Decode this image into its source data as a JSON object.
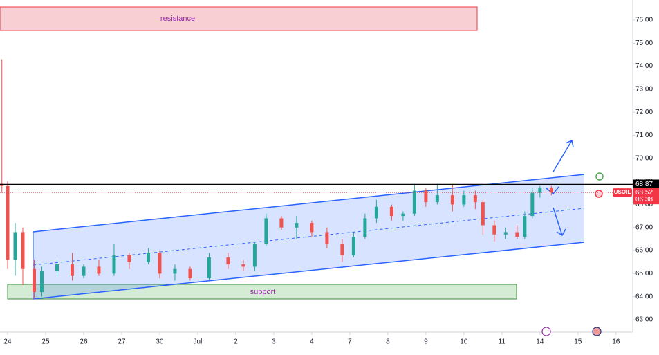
{
  "chart_data": {
    "type": "candlestick",
    "symbol": "USOIL",
    "last_price": 68.52,
    "countdown": "06:38",
    "level": 68.87,
    "annotations": {
      "resistance": "resistance",
      "support": "support"
    },
    "colors": {
      "up": "#26a69a",
      "down": "#ef5350",
      "level": "#000000",
      "last": "#f23645"
    },
    "xlim": [
      -0.2,
      16.44
    ],
    "ylim": [
      62.46,
      76.87
    ],
    "xticks": [
      {
        "value": 0,
        "label": "24"
      },
      {
        "value": 1,
        "label": "25"
      },
      {
        "value": 2,
        "label": "26"
      },
      {
        "value": 3,
        "label": "27"
      },
      {
        "value": 4,
        "label": "30"
      },
      {
        "value": 5,
        "label": "Jul"
      },
      {
        "value": 6,
        "label": "2"
      },
      {
        "value": 7,
        "label": "3"
      },
      {
        "value": 8,
        "label": "4"
      },
      {
        "value": 9,
        "label": "7"
      },
      {
        "value": 10,
        "label": "8"
      },
      {
        "value": 11,
        "label": "9"
      },
      {
        "value": 12,
        "label": "10"
      },
      {
        "value": 13,
        "label": "11"
      },
      {
        "value": 14,
        "label": "14"
      },
      {
        "value": 15,
        "label": "15"
      },
      {
        "value": 16,
        "label": "16"
      }
    ],
    "yticks": [
      {
        "value": 63,
        "label": "63.00"
      },
      {
        "value": 64,
        "label": "64.00"
      },
      {
        "value": 65,
        "label": "65.00"
      },
      {
        "value": 66,
        "label": "66.00"
      },
      {
        "value": 67,
        "label": "67.00"
      },
      {
        "value": 68,
        "label": "68.00"
      },
      {
        "value": 69,
        "label": "69.00"
      },
      {
        "value": 70,
        "label": "70.00"
      },
      {
        "value": 71,
        "label": "71.00"
      },
      {
        "value": 72,
        "label": "72.00"
      },
      {
        "value": 73,
        "label": "73.00"
      },
      {
        "value": 74,
        "label": "74.00"
      },
      {
        "value": 75,
        "label": "75.00"
      },
      {
        "value": 76,
        "label": "76.00"
      }
    ],
    "candles": {
      "x": [
        -0.15,
        0.0,
        0.2,
        0.4,
        0.7,
        0.9,
        1.3,
        1.7,
        2.0,
        2.4,
        2.8,
        3.2,
        3.7,
        4.0,
        4.4,
        4.8,
        5.3,
        5.8,
        6.2,
        6.5,
        6.8,
        7.2,
        7.6,
        8.0,
        8.4,
        8.8,
        9.1,
        9.4,
        9.7,
        10.1,
        10.4,
        10.7,
        11.0,
        11.3,
        11.7,
        12.0,
        12.3,
        12.5,
        12.8,
        13.1,
        13.4,
        13.6,
        13.8,
        14.0,
        14.3
      ],
      "open": [
        68.9,
        68.8,
        65.6,
        66.8,
        65.2,
        64.2,
        65.1,
        65.4,
        64.9,
        65.3,
        65.0,
        65.8,
        65.5,
        65.9,
        65.0,
        65.2,
        64.8,
        65.7,
        65.4,
        65.3,
        66.3,
        67.4,
        67.0,
        67.2,
        66.8,
        66.3,
        65.8,
        66.6,
        67.4,
        67.9,
        67.5,
        67.6,
        68.6,
        68.1,
        68.4,
        68.0,
        68.4,
        68.1,
        67.1,
        66.7,
        66.8,
        66.6,
        67.5,
        68.5,
        68.7
      ],
      "high": [
        74.3,
        69.0,
        67.2,
        67.0,
        65.6,
        65.3,
        65.6,
        65.9,
        65.4,
        65.6,
        66.3,
        65.9,
        66.1,
        66.0,
        65.4,
        65.3,
        65.9,
        65.9,
        65.6,
        66.4,
        67.6,
        67.5,
        67.5,
        67.3,
        67.0,
        66.5,
        66.8,
        67.6,
        68.2,
        68.0,
        67.7,
        68.9,
        68.7,
        68.9,
        68.9,
        68.6,
        68.6,
        68.2,
        67.3,
        67.0,
        67.1,
        67.7,
        68.7,
        68.8,
        68.8
      ],
      "low": [
        68.5,
        65.2,
        64.9,
        64.5,
        63.9,
        64.0,
        64.9,
        64.7,
        64.8,
        64.9,
        64.9,
        65.2,
        65.4,
        64.8,
        64.7,
        64.7,
        64.7,
        65.2,
        65.1,
        65.1,
        66.2,
        66.9,
        66.5,
        66.6,
        66.1,
        65.5,
        65.7,
        66.5,
        67.2,
        67.3,
        67.3,
        67.5,
        67.9,
        68.0,
        67.7,
        67.9,
        67.8,
        66.7,
        66.4,
        66.5,
        66.5,
        66.5,
        67.4,
        68.3,
        68.4
      ],
      "close": [
        68.8,
        65.6,
        66.8,
        65.2,
        64.2,
        65.1,
        65.4,
        64.9,
        65.3,
        65.0,
        65.8,
        65.5,
        65.9,
        65.0,
        65.2,
        64.8,
        65.7,
        65.4,
        65.3,
        66.3,
        67.4,
        67.0,
        67.2,
        66.8,
        66.3,
        65.8,
        66.6,
        67.4,
        67.9,
        67.5,
        67.6,
        68.6,
        68.1,
        68.4,
        68.0,
        68.4,
        68.1,
        67.1,
        66.7,
        66.8,
        66.6,
        67.5,
        68.5,
        68.7,
        68.52
      ]
    }
  }
}
